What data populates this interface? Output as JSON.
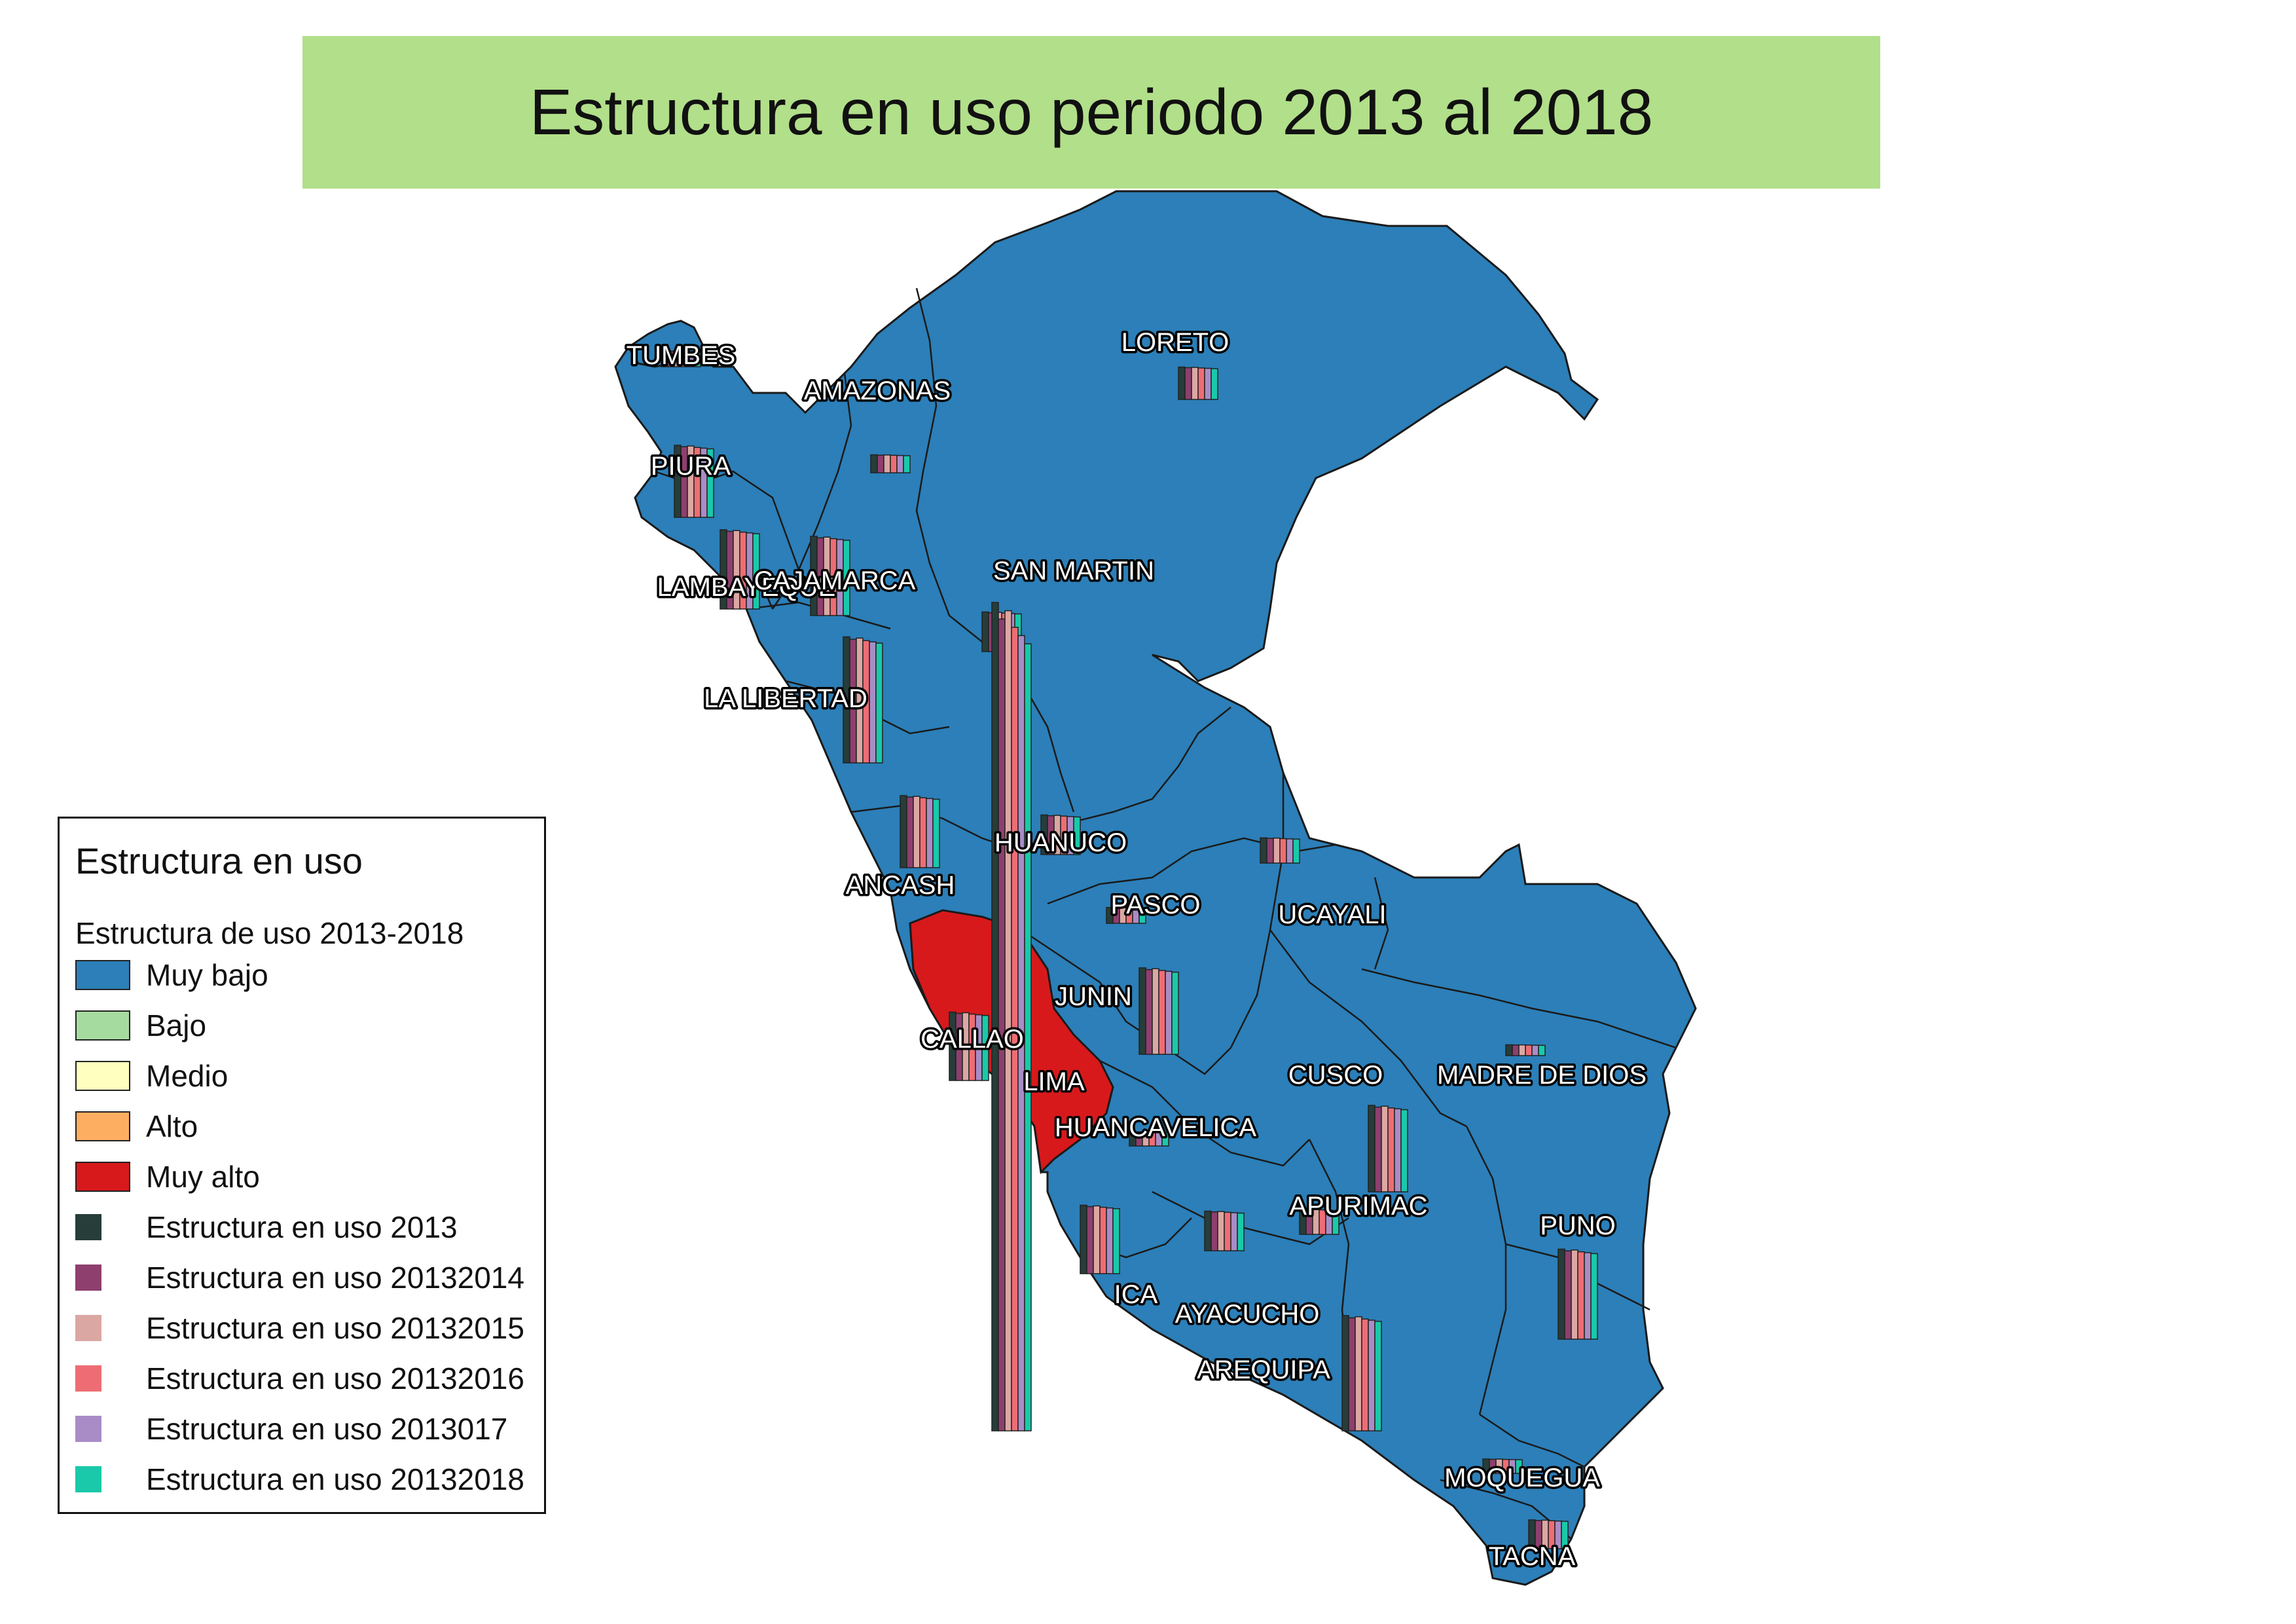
{
  "title": "Estructura en uso periodo 2013 al 2018",
  "legend": {
    "title": "Estructura en uso",
    "subtitle": "Estructura de uso 2013-2018",
    "classes": [
      {
        "label": "Muy bajo",
        "color": "#2c7fb8"
      },
      {
        "label": "Bajo",
        "color": "#a6dba0"
      },
      {
        "label": "Medio",
        "color": "#ffffbf"
      },
      {
        "label": "Alto",
        "color": "#fdae61"
      },
      {
        "label": "Muy alto",
        "color": "#d7191c"
      }
    ],
    "bar_series": [
      {
        "label": "Estructura en uso 2013",
        "color": "#263d39"
      },
      {
        "label": "Estructura en uso 20132014",
        "color": "#8e3f6e"
      },
      {
        "label": "Estructura en uso 20132015",
        "color": "#dba7a3"
      },
      {
        "label": "Estructura en uso 20132016",
        "color": "#ee6d74"
      },
      {
        "label": "Estructura en uso 2013017",
        "color": "#a98cc6"
      },
      {
        "label": "Estructura en uso 20132018",
        "color": "#19c9aa"
      }
    ]
  },
  "map": {
    "base_color": "#2c7fb8",
    "highlight_color": "#d7191c",
    "border_color": "#1a1a1a",
    "departments": [
      {
        "name": "TUMBES",
        "class": "Muy bajo",
        "bar_scale": 0.22
      },
      {
        "name": "PIURA",
        "class": "Muy bajo",
        "bar_scale": 1.0
      },
      {
        "name": "AMAZONAS",
        "class": "Muy bajo",
        "bar_scale": 0.25
      },
      {
        "name": "LOREТО",
        "class": "Muy bajo",
        "bar_scale": 0.45
      },
      {
        "name": "LAMBAYEQUE",
        "class": "Muy bajo",
        "bar_scale": 1.1
      },
      {
        "name": "CAJAMARCA",
        "class": "Muy bajo",
        "bar_scale": 1.1
      },
      {
        "name": "SAN MARTIN",
        "class": "Muy bajo",
        "bar_scale": 0.55
      },
      {
        "name": "LA LIBERTAD",
        "class": "Muy bajo",
        "bar_scale": 1.75
      },
      {
        "name": "ANCASH",
        "class": "Muy bajo",
        "bar_scale": 1.0
      },
      {
        "name": "HUANUCO",
        "class": "Muy bajo",
        "bar_scale": 0.55
      },
      {
        "name": "PASCO",
        "class": "Muy bajo",
        "bar_scale": 0.22
      },
      {
        "name": "UCAYALI",
        "class": "Muy bajo",
        "bar_scale": 0.35
      },
      {
        "name": "JUNIN",
        "class": "Muy bajo",
        "bar_scale": 1.2
      },
      {
        "name": "CALLAO",
        "class": "Muy alto",
        "bar_scale": 0.95
      },
      {
        "name": "LIMA",
        "class": "Muy alto",
        "bar_scale": 11.5
      },
      {
        "name": "HUANCAVELICA",
        "class": "Muy bajo",
        "bar_scale": 0.2
      },
      {
        "name": "CUSCO",
        "class": "Muy bajo",
        "bar_scale": 1.2
      },
      {
        "name": "MADRE DE DIOS",
        "class": "Muy bajo",
        "bar_scale": 0.15
      },
      {
        "name": "APURIMAC",
        "class": "Muy bajo",
        "bar_scale": 0.35
      },
      {
        "name": "ICA",
        "class": "Muy bajo",
        "bar_scale": 0.95
      },
      {
        "name": "AYACUCHO",
        "class": "Muy bajo",
        "bar_scale": 0.55
      },
      {
        "name": "AREQUIPA",
        "class": "Muy bajo",
        "bar_scale": 1.6
      },
      {
        "name": "PUNO",
        "class": "Muy bajo",
        "bar_scale": 1.25
      },
      {
        "name": "MOQUEGUA",
        "class": "Muy bajo",
        "bar_scale": 0.2
      },
      {
        "name": "TACNA",
        "class": "Muy bajo",
        "bar_scale": 0.4
      }
    ]
  }
}
